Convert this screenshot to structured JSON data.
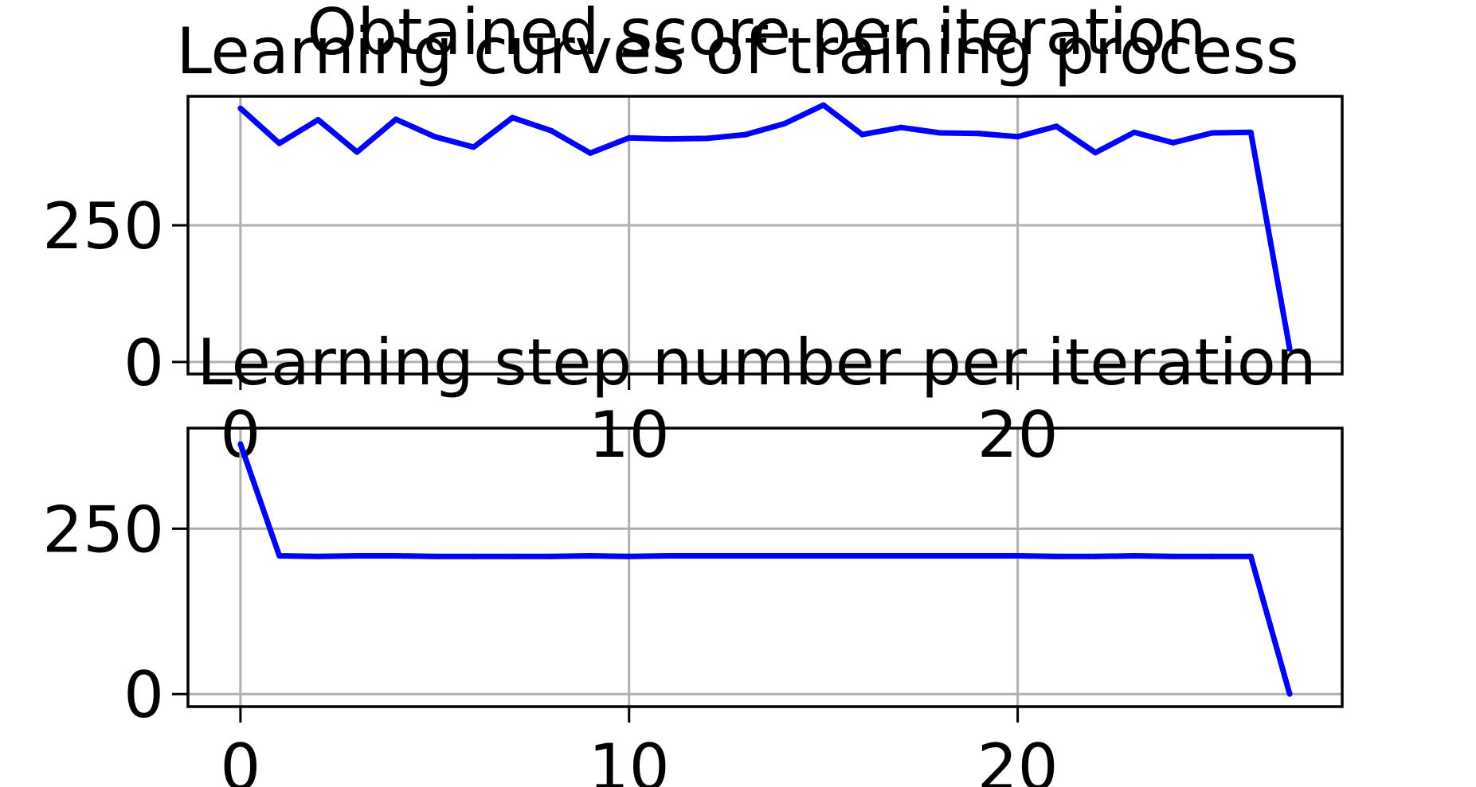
{
  "figure": {
    "suptitle": "Learning curves of training process"
  },
  "chart_data": [
    {
      "type": "line",
      "title": "Obtained score per iteration",
      "xlabel": "",
      "ylabel": "",
      "xlim": [
        -1.35,
        28.35
      ],
      "ylim": [
        -22,
        486
      ],
      "xticks": [
        0,
        10,
        20
      ],
      "yticks": [
        0,
        250
      ],
      "grid": true,
      "series": [
        {
          "color": "#0000ff",
          "x": [
            0,
            1,
            2,
            3,
            4,
            5,
            6,
            7,
            8,
            9,
            10,
            11,
            12,
            13,
            14,
            15,
            16,
            17,
            18,
            19,
            20,
            21,
            22,
            23,
            24,
            25,
            26,
            27
          ],
          "values": [
            464,
            400,
            443,
            384,
            444,
            412,
            393,
            447,
            423,
            382,
            410,
            408,
            409,
            416,
            436,
            470,
            416,
            429,
            419,
            418,
            412,
            431,
            383,
            420,
            401,
            419,
            420,
            24
          ]
        }
      ]
    },
    {
      "type": "line",
      "title": "Learning step number per iteration",
      "xlabel": "",
      "ylabel": "",
      "xlim": [
        -1.35,
        28.35
      ],
      "ylim": [
        -19,
        402
      ],
      "xticks": [
        0,
        10,
        20
      ],
      "yticks": [
        0,
        250
      ],
      "grid": true,
      "series": [
        {
          "color": "#0000ff",
          "x": [
            0,
            1,
            2,
            3,
            4,
            5,
            6,
            7,
            8,
            9,
            10,
            11,
            12,
            13,
            14,
            15,
            16,
            17,
            18,
            19,
            20,
            21,
            22,
            23,
            24,
            25,
            26,
            27
          ],
          "values": [
            378,
            209,
            208,
            209,
            209,
            208,
            208,
            208,
            208,
            209,
            208,
            209,
            209,
            209,
            209,
            209,
            209,
            209,
            209,
            209,
            209,
            208,
            208,
            209,
            208,
            208,
            208,
            0
          ]
        }
      ]
    }
  ]
}
